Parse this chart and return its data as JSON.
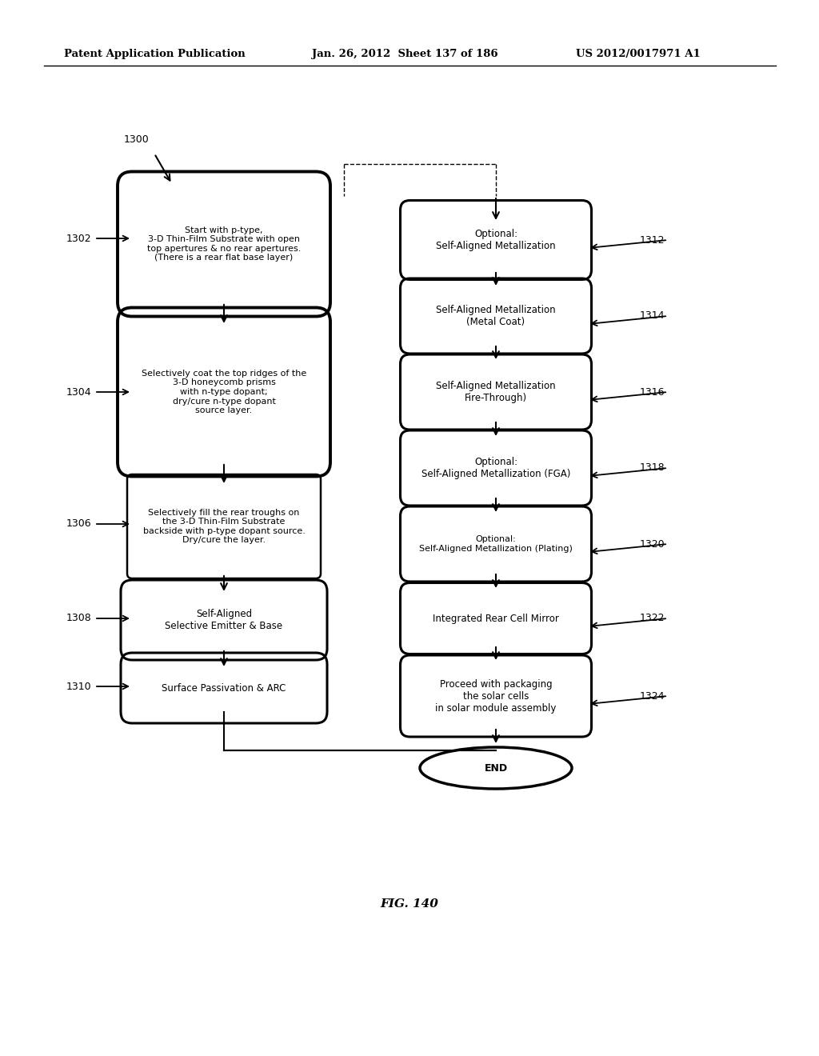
{
  "header_left": "Patent Application Publication",
  "header_middle": "Jan. 26, 2012  Sheet 137 of 186",
  "header_right": "US 2012/0017971 A1",
  "fig_label": "FIG. 140",
  "background_color": "#ffffff"
}
